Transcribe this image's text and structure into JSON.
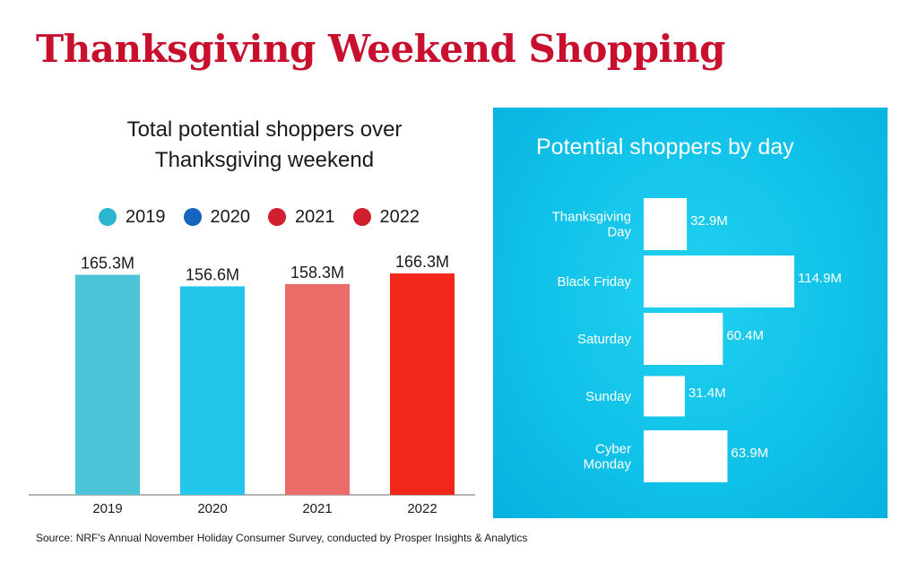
{
  "title": "Thanksgiving Weekend Shopping",
  "source": "Source: NRF's Annual November Holiday Consumer Survey, conducted by Prosper Insights & Analytics",
  "colors": {
    "title": "#c8102e",
    "panel": "#12c3ea"
  },
  "chart_data": [
    {
      "type": "bar",
      "title_lines": [
        "Total potential shoppers over",
        "Thanksgiving weekend"
      ],
      "categories": [
        "2019",
        "2020",
        "2021",
        "2022"
      ],
      "values": [
        165.3,
        156.6,
        158.3,
        166.3
      ],
      "value_labels": [
        "165.3M",
        "156.6M",
        "158.3M",
        "166.3M"
      ],
      "legend": [
        {
          "label": "2019",
          "color": "#2cb5cf"
        },
        {
          "label": "2020",
          "color": "#1565c0"
        },
        {
          "label": "2021",
          "color": "#d01f2e"
        },
        {
          "label": "2022",
          "color": "#d01f2e"
        }
      ],
      "bar_colors": [
        "#4cc4d8",
        "#22c6ea",
        "#ea6b68",
        "#f2271a"
      ],
      "ylim": [
        0,
        175
      ],
      "legend_position": "top",
      "grid": false
    },
    {
      "type": "bar",
      "orientation": "horizontal",
      "title": "Potential shoppers by day",
      "categories": [
        [
          "Thanksgiving",
          "Day"
        ],
        [
          "Black Friday"
        ],
        [
          "Saturday"
        ],
        [
          "Sunday"
        ],
        [
          "Cyber",
          "Monday"
        ]
      ],
      "values": [
        32.9,
        114.9,
        60.4,
        31.4,
        63.9
      ],
      "value_labels": [
        "32.9M",
        "114.9M",
        "60.4M",
        "31.4M",
        "63.9M"
      ],
      "bar_color": "#ffffff",
      "xlim": [
        0,
        114.9
      ],
      "grid": false
    }
  ]
}
